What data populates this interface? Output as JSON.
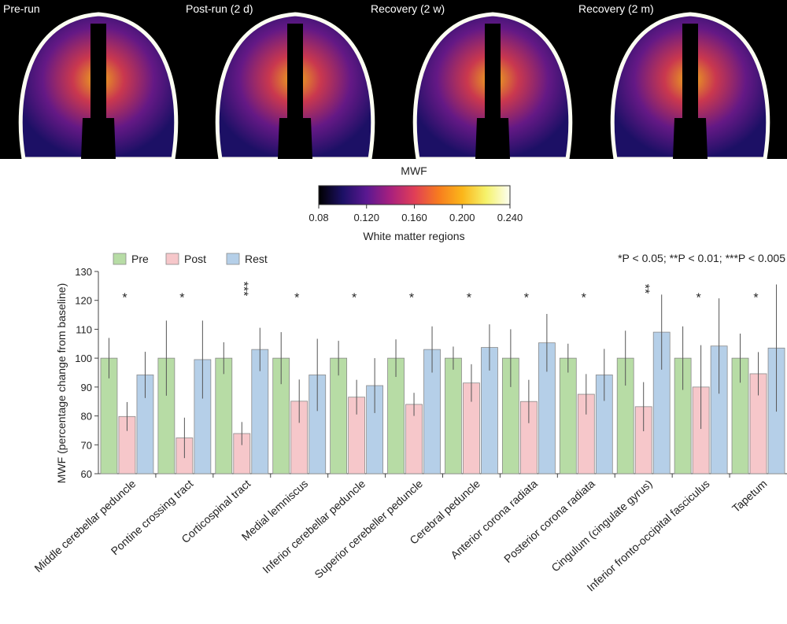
{
  "panels": [
    {
      "label": "Pre-run"
    },
    {
      "label": "Post-run (2 d)"
    },
    {
      "label": "Recovery (2 w)"
    },
    {
      "label": "Recovery (2 m)"
    }
  ],
  "colorbar": {
    "title": "MWF",
    "subtitle": "White matter regions",
    "ticks": [
      "0.08",
      "0.120",
      "0.160",
      "0.200",
      "0.240"
    ],
    "colors": [
      "#000000",
      "#1c1065",
      "#5a1891",
      "#a8207e",
      "#e03e57",
      "#f77b1f",
      "#fbb61a",
      "#f5f26b",
      "#fcfef2"
    ]
  },
  "significance_note": "*P < 0.05; **P < 0.01; ***P < 0.005",
  "chart_data": {
    "type": "bar",
    "title": "",
    "xlabel": "",
    "ylabel": "MWF (percentage change from baseline)",
    "ylim": [
      60,
      130
    ],
    "yticks": [
      "60",
      "70",
      "80",
      "90",
      "100",
      "110",
      "120",
      "130"
    ],
    "categories": [
      "Middle cerebellar peduncle",
      "Pontine crossing tract",
      "Corticospinal tract",
      "Medial lemniscus",
      "Inferior cerebellar peduncle",
      "Superior cerebeller peduncle",
      "Cerebral peduncle",
      "Anterior corona radiata",
      "Posterior corona radiata",
      "Cingulum (cingulate gyrus)",
      "Inferior fronto-occipital fasciculus",
      "Tapetum"
    ],
    "series": [
      {
        "name": "Pre",
        "color": "#b7dca5",
        "values": [
          100,
          100,
          100,
          100,
          100,
          100,
          100,
          100,
          100,
          100,
          100,
          100
        ],
        "errors": [
          7,
          13,
          5.5,
          9,
          6,
          6.5,
          4,
          10,
          5,
          9.5,
          11,
          8.5
        ]
      },
      {
        "name": "Post",
        "color": "#f6c7ca",
        "values": [
          79.8,
          72.4,
          73.9,
          85.1,
          86.5,
          84,
          91.4,
          85,
          87.5,
          83.2,
          90,
          94.6
        ],
        "errors": [
          5,
          7,
          4,
          7.5,
          6,
          4,
          6.5,
          7.5,
          7,
          8.5,
          14.5,
          7.5
        ]
      },
      {
        "name": "Rest",
        "color": "#b5cfe8",
        "values": [
          94.2,
          99.5,
          103,
          94.2,
          90.5,
          103,
          103.7,
          105.3,
          94.2,
          109,
          104.2,
          103.5
        ],
        "errors": [
          8,
          13.5,
          7.5,
          12.5,
          9.5,
          8,
          8,
          10,
          9,
          13,
          16.5,
          22
        ]
      }
    ],
    "significance": [
      "*",
      "*",
      "***",
      "*",
      "*",
      "*",
      "*",
      "*",
      "*",
      "**",
      "*",
      "*"
    ]
  }
}
